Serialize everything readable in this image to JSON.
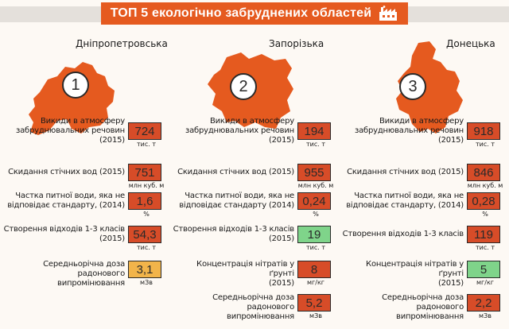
{
  "header": {
    "title": "ТОП 5 екологічно забруднених областей",
    "icon": "factory-icon"
  },
  "colors": {
    "orange": "#e55a1f",
    "value_red": "#d74c28",
    "value_green": "#7fd48a",
    "value_yellow": "#f2b44a"
  },
  "regions": [
    {
      "name": "Дніпропетровська",
      "rank": "1",
      "stats": [
        {
          "label_lines": [
            "Викиди в атмосферу",
            "забруднювальних речовин",
            "(2015)"
          ],
          "value": "724",
          "unit": "тис. т",
          "color": "#d74c28"
        },
        {
          "label_lines": [
            "Скидання стічних вод (2015)"
          ],
          "value": "751",
          "unit": "млн куб. м",
          "color": "#d74c28"
        },
        {
          "label_lines": [
            "Частка питної води, яка не",
            "відповідає стандарту, (2014)"
          ],
          "value": "1,6",
          "unit": "%",
          "color": "#d74c28"
        },
        {
          "label_lines": [
            "Створення відходів 1-3 класів",
            "(2015)"
          ],
          "value": "54,3",
          "unit": "тис. т",
          "color": "#d74c28"
        },
        {
          "label_lines": [
            "Середньорічна доза радонового",
            "випромінювання"
          ],
          "value": "3,1",
          "unit": "мЗв",
          "color": "#f2b44a"
        }
      ]
    },
    {
      "name": "Запорізька",
      "rank": "2",
      "stats": [
        {
          "label_lines": [
            "Викиди в атмосферу",
            "забруднювальних речовин",
            "(2015)"
          ],
          "value": "194",
          "unit": "тис. т",
          "color": "#d74c28"
        },
        {
          "label_lines": [
            "Скидання стічних вод (2015)"
          ],
          "value": "955",
          "unit": "млн куб. м",
          "color": "#d74c28"
        },
        {
          "label_lines": [
            "Частка питної води, яка не",
            "відповідає стандарту (2014)"
          ],
          "value": "0,24",
          "unit": "%",
          "color": "#d74c28"
        },
        {
          "label_lines": [
            "Створення відходів 1-3 класів",
            "(2015)"
          ],
          "value": "19",
          "unit": "тис. т",
          "color": "#7fd48a"
        },
        {
          "label_lines": [
            "Концентрація нітратів у ґрунті",
            "(2015)"
          ],
          "value": "8",
          "unit": "мг/кг",
          "color": "#d74c28"
        },
        {
          "label_lines": [
            "Середньорічна доза радонового",
            "випромінювання"
          ],
          "value": "5,2",
          "unit": "мЗв",
          "color": "#d74c28"
        }
      ]
    },
    {
      "name": "Донецька",
      "rank": "3",
      "stats": [
        {
          "label_lines": [
            "Викиди в атмосферу",
            "забруднювальних речовин",
            "(2015)"
          ],
          "value": "918",
          "unit": "тис. т",
          "color": "#d74c28"
        },
        {
          "label_lines": [
            "Скидання стічних вод (2015)"
          ],
          "value": "846",
          "unit": "млн куб. м",
          "color": "#d74c28"
        },
        {
          "label_lines": [
            "Частка питної води, яка не",
            "відповідає стандарту, (2014)"
          ],
          "value": "0,28",
          "unit": "%",
          "color": "#d74c28"
        },
        {
          "label_lines": [
            "Створення відходів 1-3 класів"
          ],
          "value": "119",
          "unit": "тис. т",
          "color": "#d74c28"
        },
        {
          "label_lines": [
            "Концентрація нітратів у ґрунті",
            "(2015)"
          ],
          "value": "5",
          "unit": "мг/кг",
          "color": "#7fd48a"
        },
        {
          "label_lines": [
            "Середньорічна доза радонового",
            "випромінювання"
          ],
          "value": "2,2",
          "unit": "мЗв",
          "color": "#d74c28"
        }
      ]
    }
  ]
}
